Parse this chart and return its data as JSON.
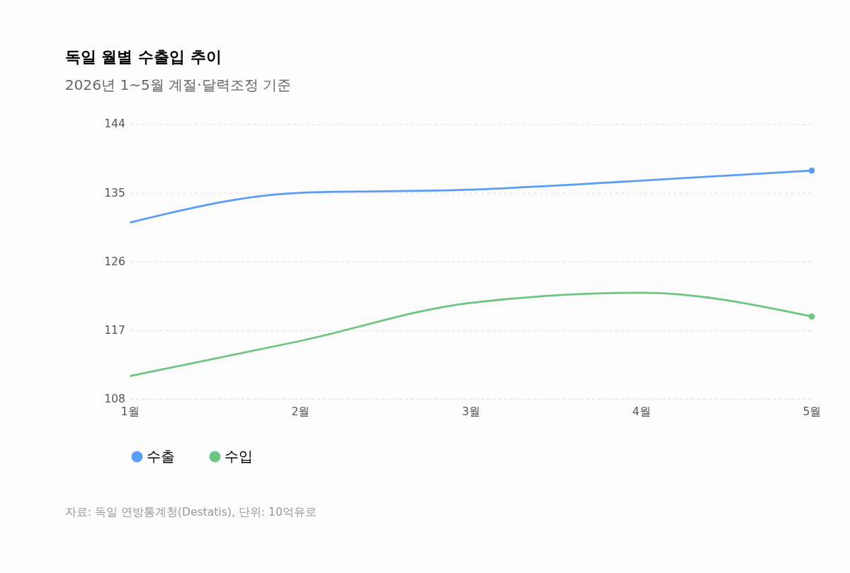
{
  "chart_data": {
    "type": "line",
    "title": "독일 월별 수출입 추이",
    "subtitle": "2026년 1~5월 계절·달력조정 기준",
    "categories": [
      "1월",
      "2월",
      "3월",
      "4월",
      "5월"
    ],
    "series": [
      {
        "name": "수출",
        "color": "#5b9cf5",
        "values": [
          131.1,
          135.0,
          135.4,
          136.6,
          137.9
        ]
      },
      {
        "name": "수입",
        "color": "#6cc581",
        "values": [
          111.0,
          115.6,
          120.6,
          121.9,
          118.8
        ]
      }
    ],
    "ylim": [
      108,
      144
    ],
    "yticks": [
      108,
      117,
      126,
      135,
      144
    ],
    "grid": "y",
    "legend": "bottom",
    "line_style": "solid",
    "annotations": [
      "자료: 독일 연방통계청(Destatis), 단위: 10억유로"
    ]
  }
}
